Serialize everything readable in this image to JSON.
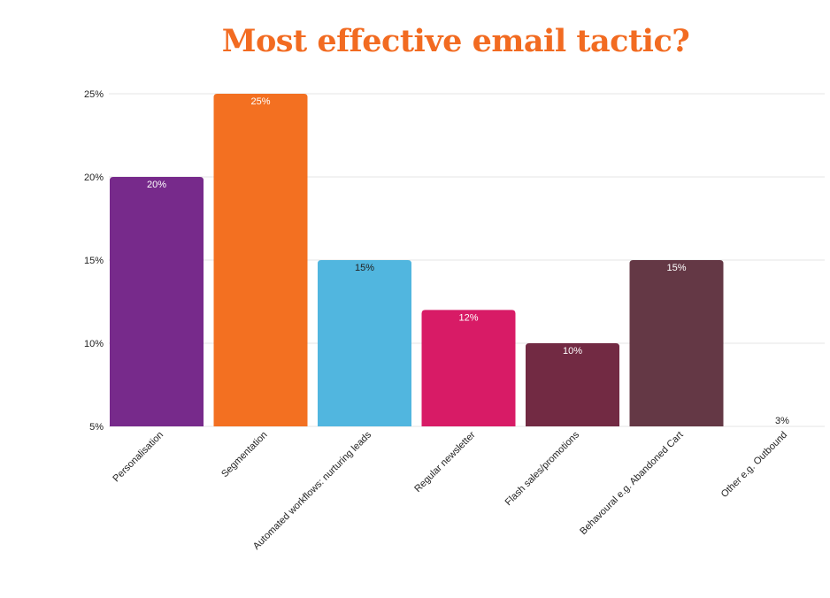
{
  "chart_data": {
    "type": "bar",
    "title": "Most effective email tactic?",
    "categories": [
      "Personalisation",
      "Segmentation",
      "Automated workflows: nurturing leads",
      "Regular newsletter",
      "Flash sales/promotions",
      "Behavoural e.g. Abandoned Cart",
      "Other e.g. Outbound"
    ],
    "values": [
      20,
      25,
      15,
      12,
      10,
      15,
      3
    ],
    "data_labels": [
      "20%",
      "25%",
      "15%",
      "12%",
      "10%",
      "15%",
      "3%"
    ],
    "colors": [
      "#772A8B",
      "#F37021",
      "#51B6DF",
      "#D81B66",
      "#722A43",
      "#643845",
      "#ffffff"
    ],
    "label_colors": [
      "#ffffff",
      "#ffffff",
      "#222222",
      "#ffffff",
      "#ffffff",
      "#ffffff",
      "#222222"
    ],
    "ylim": [
      5,
      25
    ],
    "yticks": [
      5,
      10,
      15,
      20,
      25
    ],
    "ytick_labels": [
      "5%",
      "10%",
      "15%",
      "20%",
      "25%"
    ],
    "grid": true,
    "xlabel": "",
    "ylabel": ""
  }
}
